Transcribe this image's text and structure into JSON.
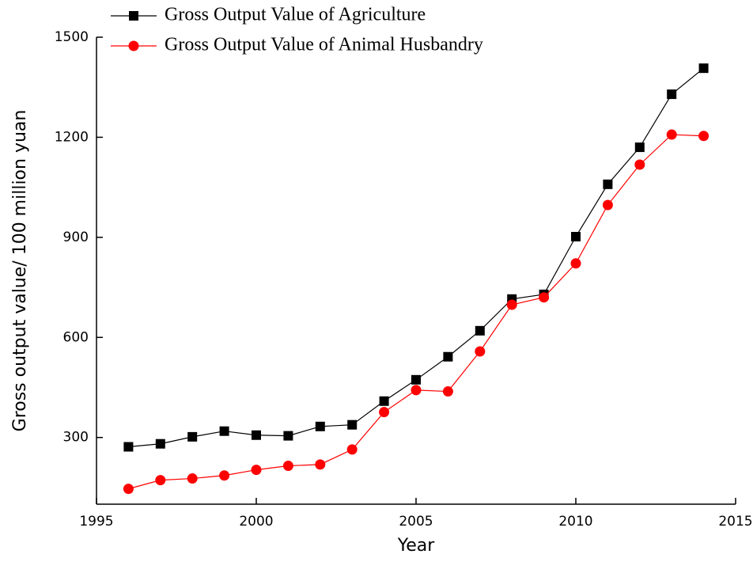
{
  "chart_data": {
    "type": "line",
    "x_label": "Year",
    "y_label": "Gross output value/ 100 million yuan",
    "x": [
      1996,
      1997,
      1998,
      1999,
      2000,
      2001,
      2002,
      2003,
      2004,
      2005,
      2006,
      2007,
      2008,
      2009,
      2010,
      2011,
      2012,
      2013,
      2014
    ],
    "series": [
      {
        "name": "Gross Output Value of Agriculture",
        "color": "#000000",
        "marker": "square",
        "values": [
          272,
          281,
          302,
          319,
          307,
          305,
          333,
          338,
          409,
          473,
          542,
          620,
          715,
          729,
          902,
          1059,
          1170,
          1329,
          1407
        ]
      },
      {
        "name": "Gross Output Value of Animal Husbandry",
        "color": "#ff0000",
        "marker": "circle",
        "values": [
          146,
          172,
          177,
          186,
          203,
          215,
          219,
          264,
          376,
          442,
          438,
          558,
          698,
          720,
          822,
          997,
          1118,
          1208,
          1204
        ]
      }
    ],
    "xlim": [
      1995,
      2015
    ],
    "xticks": [
      1995,
      2000,
      2005,
      2010,
      2015
    ],
    "ylim": [
      100,
      1500
    ],
    "yticks": [
      300,
      600,
      900,
      1200,
      1500
    ],
    "grid": false,
    "legend": "top-left"
  }
}
